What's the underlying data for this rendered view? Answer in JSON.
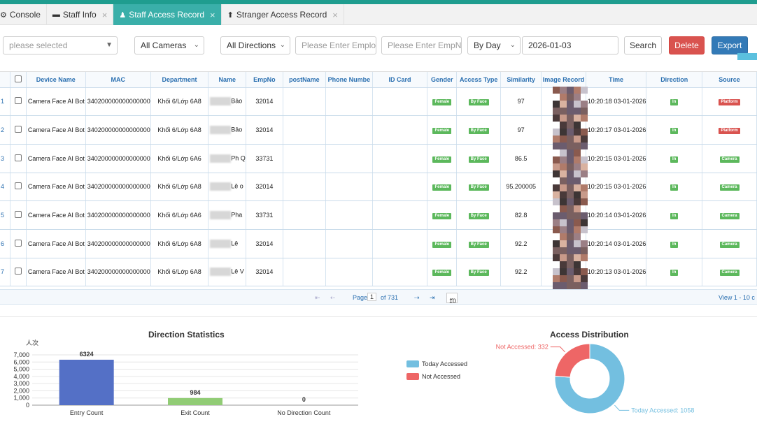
{
  "tabs": [
    {
      "label": "Console",
      "icon": "gear-icon",
      "closable": false,
      "active": false
    },
    {
      "label": "Staff Info",
      "icon": "id-card-icon",
      "closable": true,
      "active": false
    },
    {
      "label": "Staff Access Record",
      "icon": "person-icon",
      "closable": true,
      "active": true
    },
    {
      "label": "Stranger Access Record",
      "icon": "pin-icon",
      "closable": true,
      "active": false
    }
  ],
  "filters": {
    "select_placeholder": "please selected",
    "cameras": "All Cameras",
    "directions": "All Directions",
    "emp_placeholder_1": "Please Enter Employ",
    "emp_placeholder_2": "Please Enter EmpNo",
    "period": "By Day",
    "date": "2026-01-03",
    "search": "Search",
    "delete": "Delete",
    "export": "Export"
  },
  "table": {
    "columns": [
      "Device Name",
      "MAC",
      "Department",
      "Name",
      "EmpNo",
      "postName",
      "Phone Numbe",
      "ID Card",
      "Gender",
      "Access Type",
      "Similarity",
      "Image Record",
      "Time",
      "Direction",
      "Source"
    ],
    "rows": [
      {
        "n": "1",
        "device": "Camera Face AI Bot",
        "mac": "340200000000000000",
        "dept": "Khối 6/Lớp 6A8",
        "name": "Bảo",
        "empno": "32014",
        "gender": "Female",
        "access": "By Face",
        "sim": "97",
        "time": "10:20:18 03-01-2026",
        "dir": "In",
        "source": "Platform"
      },
      {
        "n": "2",
        "device": "Camera Face AI Bot",
        "mac": "340200000000000000",
        "dept": "Khối 6/Lớp 6A8",
        "name": "Bảo",
        "empno": "32014",
        "gender": "Female",
        "access": "By Face",
        "sim": "97",
        "time": "10:20:17 03-01-2026",
        "dir": "In",
        "source": "Platform"
      },
      {
        "n": "3",
        "device": "Camera Face AI Bot",
        "mac": "340200000000000000",
        "dept": "Khối 6/Lớp 6A6",
        "name": "Ph Q",
        "empno": "33731",
        "gender": "Female",
        "access": "By Face",
        "sim": "86.5",
        "time": "10:20:15 03-01-2026",
        "dir": "In",
        "source": "Camera"
      },
      {
        "n": "4",
        "device": "Camera Face AI Bot",
        "mac": "340200000000000000",
        "dept": "Khối 6/Lớp 6A8",
        "name": "Lê o",
        "empno": "32014",
        "gender": "Female",
        "access": "By Face",
        "sim": "95.200005",
        "time": "10:20:15 03-01-2026",
        "dir": "In",
        "source": "Camera"
      },
      {
        "n": "5",
        "device": "Camera Face AI Bot",
        "mac": "340200000000000000",
        "dept": "Khối 6/Lớp 6A6",
        "name": "Pha",
        "empno": "33731",
        "gender": "Female",
        "access": "By Face",
        "sim": "82.8",
        "time": "10:20:14 03-01-2026",
        "dir": "In",
        "source": "Camera"
      },
      {
        "n": "6",
        "device": "Camera Face AI Bot",
        "mac": "340200000000000000",
        "dept": "Khối 6/Lớp 6A8",
        "name": "Lê",
        "empno": "32014",
        "gender": "Female",
        "access": "By Face",
        "sim": "92.2",
        "time": "10:20:14 03-01-2026",
        "dir": "In",
        "source": "Camera"
      },
      {
        "n": "7",
        "device": "Camera Face AI Bot",
        "mac": "340200000000000000",
        "dept": "Khối 6/Lớp 6A8",
        "name": "Lê V",
        "empno": "32014",
        "gender": "Female",
        "access": "By Face",
        "sim": "92.2",
        "time": "10:20:13 03-01-2026",
        "dir": "In",
        "source": "Camera"
      }
    ]
  },
  "pager": {
    "page_label": "Page",
    "page": "1",
    "of": "of 731",
    "per_page": "10",
    "view": "View 1 - 10 c"
  },
  "colors": {
    "teal": "#1f9d8f",
    "bar_entry": "#5470c6",
    "bar_exit": "#91cc75",
    "today": "#73bfe0",
    "not": "#ee6666"
  },
  "chart_data": [
    {
      "type": "bar",
      "title": "Direction Statistics",
      "ylabel": "人次",
      "categories": [
        "Entry Count",
        "Exit Count",
        "No Direction Count"
      ],
      "values": [
        6324,
        984,
        0
      ],
      "ylim": [
        0,
        7000
      ],
      "yticks": [
        "0",
        "1,000",
        "2,000",
        "3,000",
        "4,000",
        "5,000",
        "6,000",
        "7,000"
      ]
    },
    {
      "type": "pie",
      "title": "Access Distribution",
      "labels": [
        "Today Accessed",
        "Not Accessed"
      ],
      "values": [
        1058,
        332
      ],
      "slice_labels": [
        "Today Accessed: 1058",
        "Not Accessed: 332"
      ],
      "legend": "left"
    }
  ]
}
